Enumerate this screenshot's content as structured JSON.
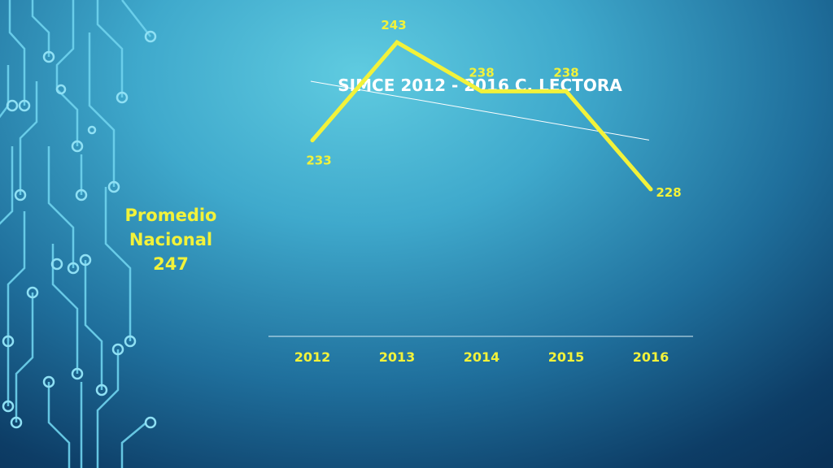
{
  "side_note": {
    "line1": "Promedio",
    "line2": "Nacional",
    "value": "247"
  },
  "colors": {
    "series": "#f2f23a",
    "title": "#ffffff",
    "trend": "#ffffff",
    "axis": "#d8eef6"
  },
  "chart_data": {
    "type": "line",
    "title": "SIMCE 2012 - 2016 C. LECTORA",
    "categories": [
      "2012",
      "2013",
      "2014",
      "2015",
      "2016"
    ],
    "series": [
      {
        "values": [
          233,
          243,
          238,
          238,
          228
        ],
        "data_labels": [
          "233",
          "243",
          "238",
          "238",
          "228"
        ]
      }
    ],
    "trendline": {
      "type": "linear"
    },
    "ylim": [
      213,
      244
    ],
    "grid": false,
    "legend": "none"
  }
}
